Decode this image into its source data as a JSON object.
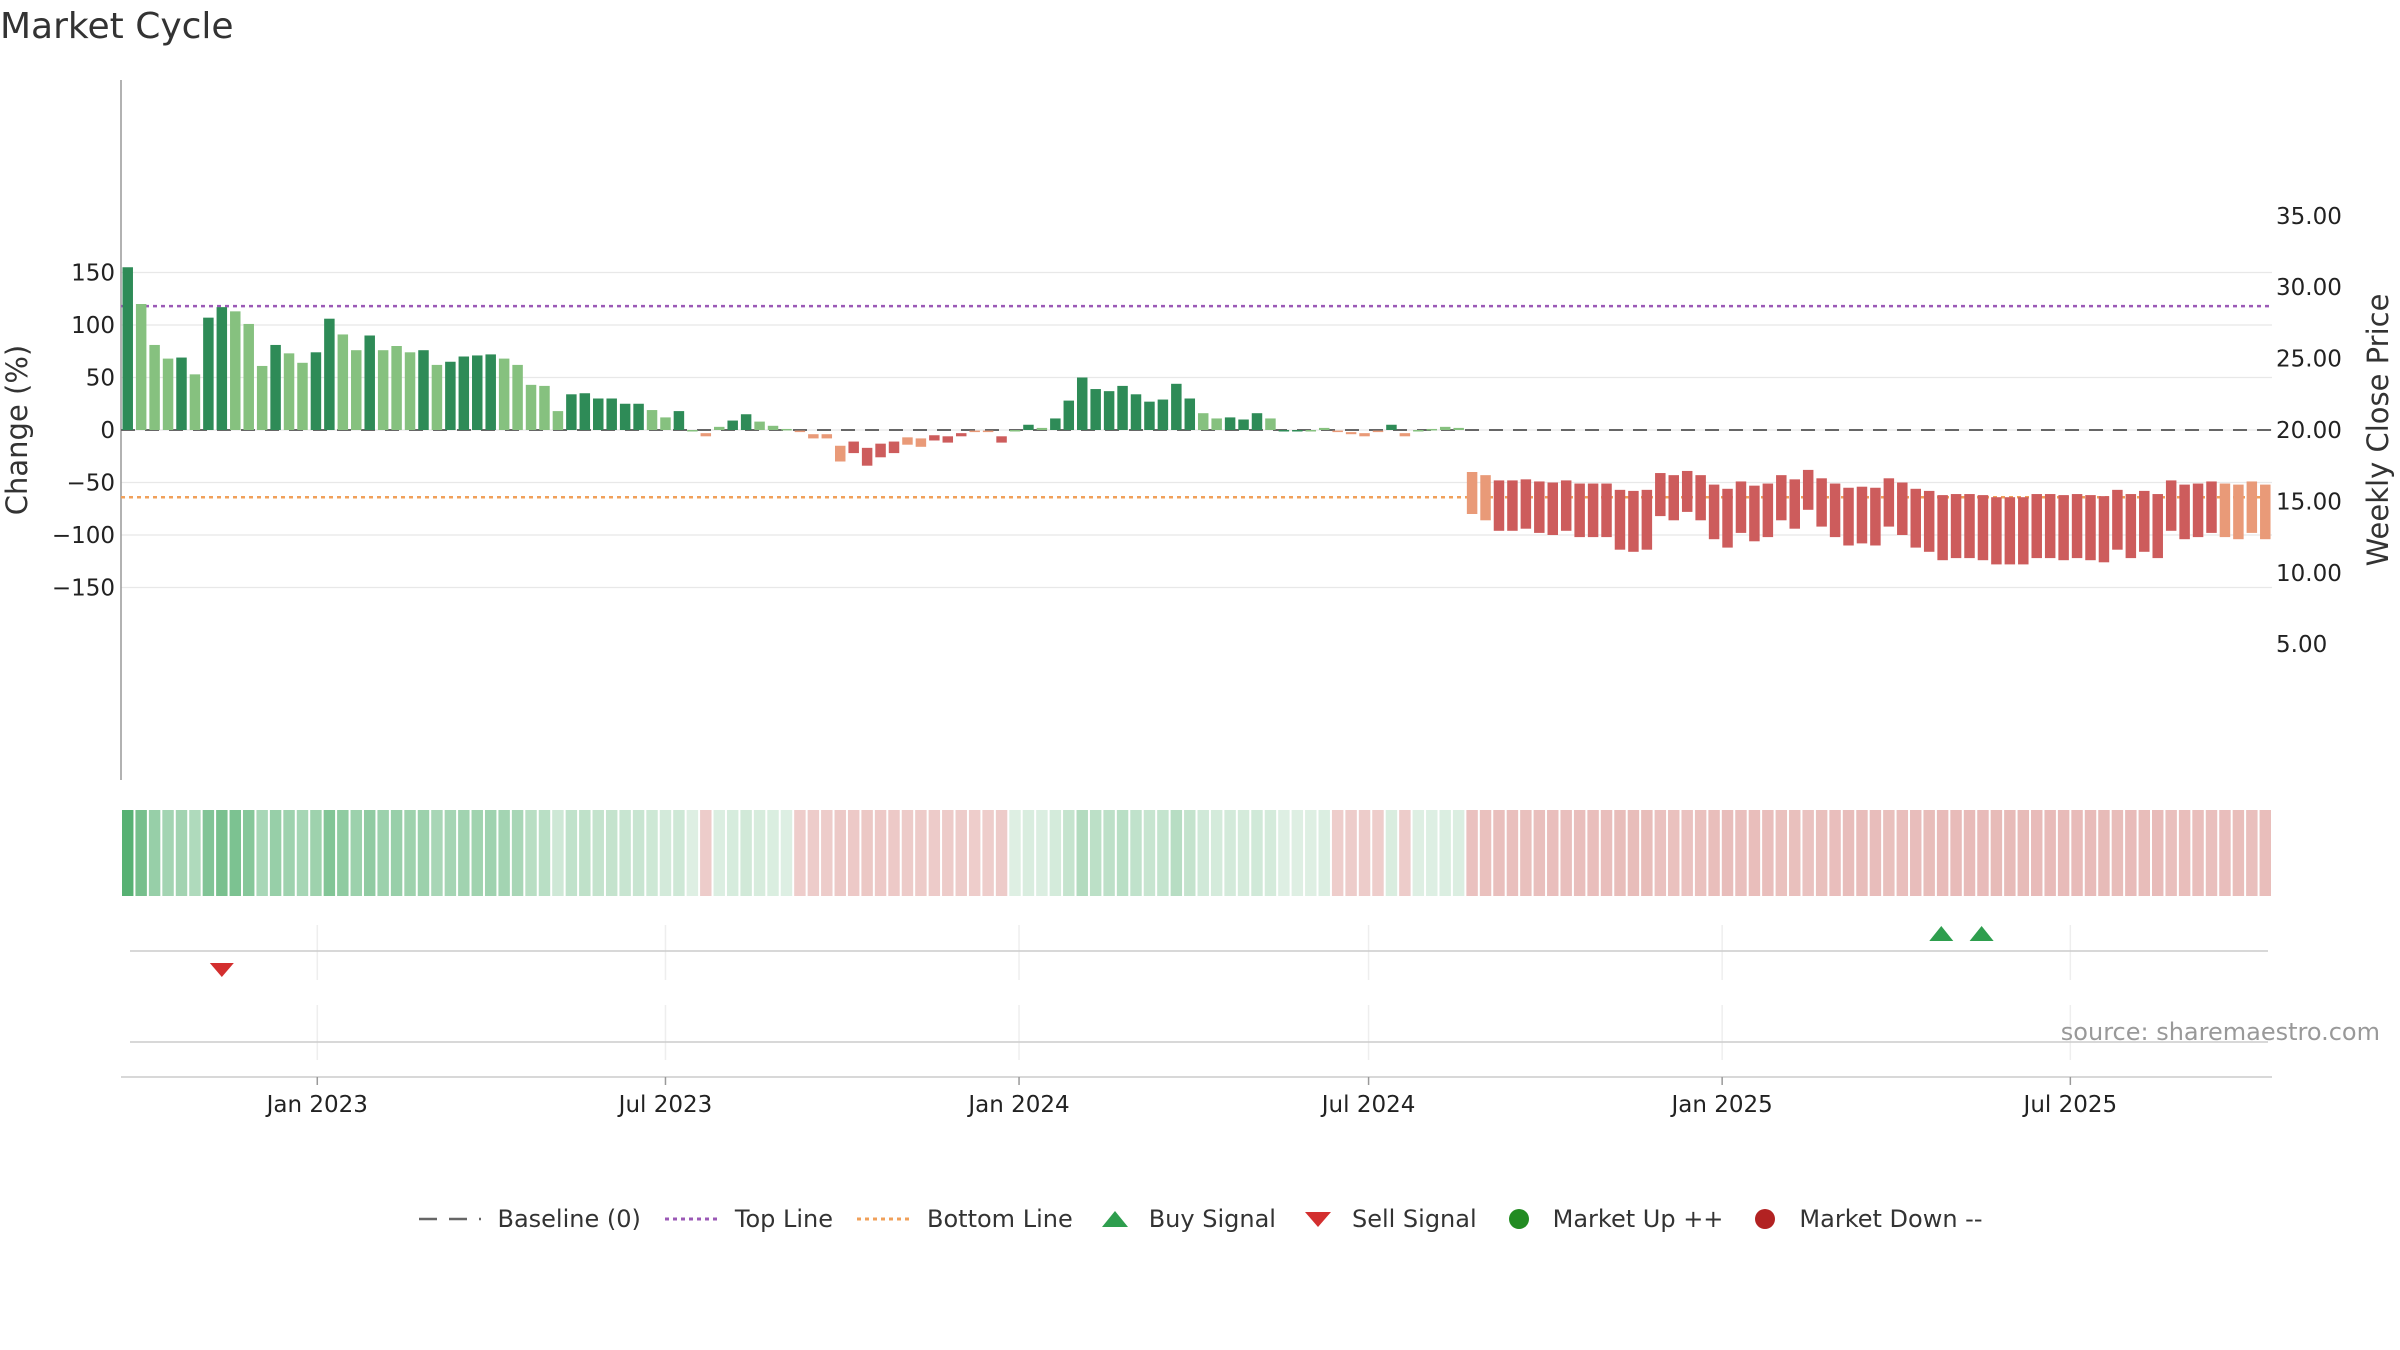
{
  "title": "Market Cycle",
  "source": "source: sharemaestro.com",
  "chart_data": {
    "type": "bar",
    "title": "Market Cycle",
    "ylabel_left": "Change (%)",
    "ylabel_right": "Weekly Close Price",
    "y_left_ticks": [
      150,
      100,
      50,
      0,
      -50,
      -100,
      -150
    ],
    "y_left_tick_labels": [
      "150",
      "100",
      "50",
      "0",
      "−50",
      "−100",
      "−150"
    ],
    "y_right_ticks": [
      35,
      30,
      25,
      20,
      15,
      10,
      5
    ],
    "y_right_tick_labels": [
      "35.00",
      "30.00",
      "25.00",
      "20.00",
      "15.00",
      "10.00",
      "5.00"
    ],
    "ylim": [
      -167,
      167
    ],
    "x_tick_labels": [
      "Jan 2023",
      "Jul 2023",
      "Jan 2024",
      "Jul 2024",
      "Jan 2025",
      "Jul 2025"
    ],
    "x_tick_positions": [
      14.6,
      40.5,
      66.8,
      92.8,
      119.1,
      145
    ],
    "reference_lines": {
      "baseline": 0,
      "top_line": 118,
      "bottom_line": -64
    },
    "values": [
      155,
      120,
      81,
      68,
      69,
      53,
      107,
      117,
      113,
      101,
      61,
      81,
      73,
      64,
      74,
      106,
      91,
      76,
      90,
      76,
      80,
      74,
      76,
      62,
      65,
      70,
      71,
      72,
      68,
      62,
      43,
      42,
      18,
      34,
      35,
      30,
      30,
      25,
      25,
      19,
      12,
      18,
      0,
      -3,
      3,
      9,
      15,
      8,
      4,
      1,
      -1,
      -4,
      -4,
      -15,
      -11,
      -17,
      -13,
      -11,
      -7,
      -8,
      -5,
      -6,
      -3,
      -1,
      -1,
      -6,
      0,
      5,
      2,
      11,
      28,
      50,
      39,
      37,
      42,
      34,
      27,
      29,
      44,
      30,
      16,
      11,
      12,
      10,
      16,
      11,
      0,
      0,
      0,
      2,
      -1,
      -2,
      -3,
      -1,
      5,
      -3,
      0,
      1,
      3,
      2,
      -40,
      -43,
      -48,
      -48,
      -47,
      -49,
      -50,
      -48,
      -51,
      -51,
      -51,
      -57,
      -58,
      -57,
      -41,
      -43,
      -39,
      -43,
      -52,
      -56,
      -49,
      -53,
      -51,
      -43,
      -47,
      -38,
      -46,
      -51,
      -55,
      -54,
      -55,
      -46,
      -50,
      -56,
      -58,
      -62,
      -61,
      -61,
      -62,
      -64,
      -64,
      -64,
      -61,
      -61,
      -62,
      -61,
      -62,
      -63,
      -57,
      -61,
      -58,
      -61,
      -48,
      -52,
      -51,
      -49,
      -51,
      -52,
      -49,
      -52
    ],
    "highlight_bars": [
      0,
      4,
      6,
      7,
      11,
      14,
      15,
      18,
      22,
      24,
      25,
      26,
      27,
      33,
      34,
      35,
      36,
      37,
      38,
      41,
      45,
      46,
      54,
      55,
      56,
      57,
      60,
      61,
      62,
      65,
      67,
      69,
      70,
      71,
      72,
      73,
      74,
      75,
      76,
      77,
      78,
      79,
      82,
      83,
      84,
      86,
      87,
      94,
      102,
      103,
      104,
      105,
      106,
      107,
      108,
      109,
      110,
      111,
      112,
      113,
      114,
      115,
      116,
      117,
      118,
      119,
      120,
      121,
      122,
      123,
      124,
      125,
      126,
      127,
      128,
      129,
      130,
      131,
      132,
      133,
      134,
      135,
      136,
      137,
      138,
      139,
      140,
      141,
      142,
      143,
      144,
      145,
      146,
      147,
      148,
      149,
      150,
      151,
      152,
      153,
      154,
      155
    ],
    "signals": [
      {
        "type": "sell",
        "x": 7.5
      },
      {
        "type": "buy",
        "x": 135.4
      },
      {
        "type": "buy",
        "x": 138.4
      }
    ],
    "colors": {
      "up_strong": "#2e8b57",
      "up_light": "#86c17f",
      "down_strong": "#cd5c5c",
      "down_light": "#e99a78",
      "top_line": "#9b59b6",
      "bottom_line": "#f0a05a",
      "baseline": "#666666",
      "buy": "#2e9e4e",
      "sell": "#d32f2f",
      "market_up": "#228b22",
      "market_down": "#b22222"
    },
    "legend": [
      {
        "key": "baseline",
        "label": "Baseline (0)"
      },
      {
        "key": "top",
        "label": "Top Line"
      },
      {
        "key": "bottom",
        "label": "Bottom Line"
      },
      {
        "key": "buy",
        "label": "Buy Signal"
      },
      {
        "key": "sell",
        "label": "Sell Signal"
      },
      {
        "key": "up",
        "label": "Market Up ++"
      },
      {
        "key": "down",
        "label": "Market Down --"
      }
    ]
  }
}
